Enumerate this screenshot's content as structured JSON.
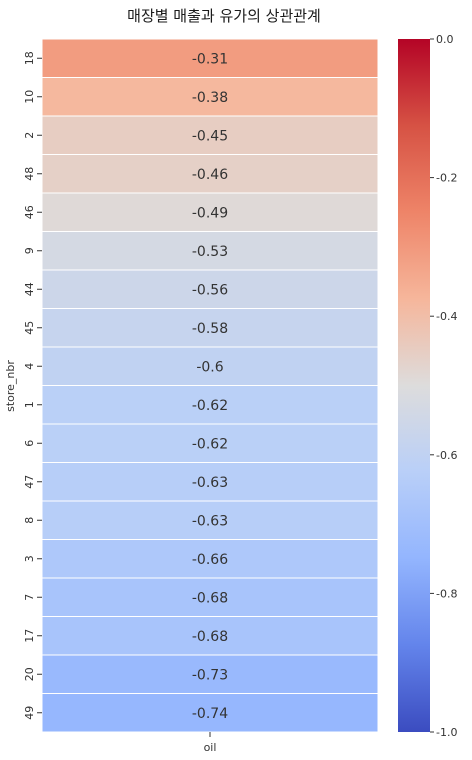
{
  "chart_data": {
    "type": "heatmap",
    "title": "매장별 매출과 유가의 상관관계",
    "ylabel": "store_nbr",
    "xlabel": "",
    "columns": [
      "oil"
    ],
    "rows": [
      "18",
      "10",
      "2",
      "48",
      "46",
      "9",
      "44",
      "45",
      "4",
      "1",
      "6",
      "47",
      "8",
      "3",
      "7",
      "17",
      "20",
      "49"
    ],
    "values": [
      -0.31,
      -0.38,
      -0.45,
      -0.46,
      -0.49,
      -0.53,
      -0.56,
      -0.58,
      -0.6,
      -0.62,
      -0.62,
      -0.63,
      -0.63,
      -0.66,
      -0.68,
      -0.68,
      -0.73,
      -0.74
    ],
    "value_labels": [
      "-0.31",
      "-0.38",
      "-0.45",
      "-0.46",
      "-0.49",
      "-0.53",
      "-0.56",
      "-0.58",
      "-0.6",
      "-0.62",
      "-0.62",
      "-0.63",
      "-0.63",
      "-0.66",
      "-0.68",
      "-0.68",
      "-0.73",
      "-0.74"
    ],
    "colormap": "coolwarm",
    "vmin": -1.0,
    "vmax": 0.0,
    "colorbar_ticks": [
      "0.0",
      "-0.2",
      "-0.4",
      "-0.6",
      "-0.8",
      "-1.0"
    ],
    "colorbar_tick_values": [
      0.0,
      -0.2,
      -0.4,
      -0.6,
      -0.8,
      -1.0
    ]
  }
}
